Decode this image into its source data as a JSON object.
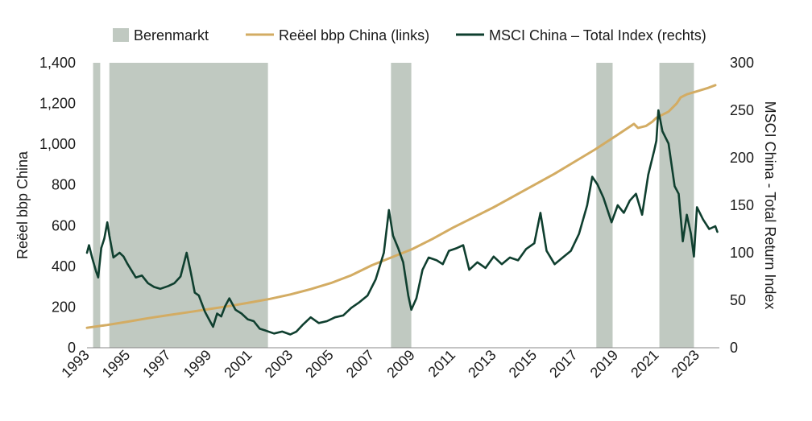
{
  "chart_data": {
    "type": "line",
    "legend": {
      "position": "top",
      "items": [
        {
          "label": "Berenmarkt",
          "kind": "band",
          "color": "#c0c9c1"
        },
        {
          "label": "Reëel bbp China (links)",
          "kind": "line",
          "color": "#d3ac63"
        },
        {
          "label": "MSCI China – Total Index (rechts)",
          "kind": "line",
          "color": "#0f3f2f"
        }
      ]
    },
    "y_left": {
      "label": "Reëel bbp China",
      "range": [
        0,
        1400
      ],
      "ticks": [
        "0",
        "200",
        "400",
        "600",
        "800",
        "1,000",
        "1,200",
        "1,400"
      ]
    },
    "y_right": {
      "label": "MSCI China - Total Return Index",
      "range": [
        0,
        300
      ],
      "ticks": [
        "0",
        "50",
        "100",
        "150",
        "200",
        "250",
        "300"
      ]
    },
    "x_axis": {
      "range": [
        1993.0,
        2024.1
      ],
      "ticks": [
        "1993",
        "1995",
        "1997",
        "1999",
        "2001",
        "2003",
        "2005",
        "2007",
        "2009",
        "2011",
        "2013",
        "2015",
        "2017",
        "2019",
        "2021",
        "2023"
      ]
    },
    "grid": false,
    "bear_markets": [
      {
        "start": 1993.3,
        "end": 1993.65
      },
      {
        "start": 1994.1,
        "end": 2001.9
      },
      {
        "start": 2007.95,
        "end": 2008.95
      },
      {
        "start": 2018.05,
        "end": 2018.85
      },
      {
        "start": 2021.15,
        "end": 2022.85
      }
    ],
    "series": [
      {
        "name": "Reëel bbp China (links)",
        "axis": "left",
        "color": "#d3ac63",
        "points": [
          [
            1993.0,
            98
          ],
          [
            1994.0,
            112
          ],
          [
            1995.0,
            128
          ],
          [
            1996.0,
            145
          ],
          [
            1997.0,
            160
          ],
          [
            1998.0,
            175
          ],
          [
            1999.0,
            190
          ],
          [
            2000.0,
            205
          ],
          [
            2001.0,
            222
          ],
          [
            2002.0,
            240
          ],
          [
            2003.0,
            262
          ],
          [
            2004.0,
            288
          ],
          [
            2005.0,
            318
          ],
          [
            2006.0,
            356
          ],
          [
            2007.0,
            405
          ],
          [
            2008.0,
            445
          ],
          [
            2009.0,
            485
          ],
          [
            2010.0,
            535
          ],
          [
            2011.0,
            590
          ],
          [
            2012.0,
            640
          ],
          [
            2013.0,
            690
          ],
          [
            2014.0,
            745
          ],
          [
            2015.0,
            800
          ],
          [
            2016.0,
            855
          ],
          [
            2017.0,
            915
          ],
          [
            2018.0,
            975
          ],
          [
            2019.0,
            1040
          ],
          [
            2019.9,
            1100
          ],
          [
            2020.1,
            1080
          ],
          [
            2020.5,
            1090
          ],
          [
            2020.8,
            1110
          ],
          [
            2021.0,
            1130
          ],
          [
            2021.6,
            1160
          ],
          [
            2022.0,
            1200
          ],
          [
            2022.2,
            1230
          ],
          [
            2022.5,
            1245
          ],
          [
            2023.0,
            1260
          ],
          [
            2023.5,
            1275
          ],
          [
            2023.9,
            1290
          ]
        ]
      },
      {
        "name": "MSCI China – Total Index (rechts)",
        "axis": "right",
        "color": "#0f3f2f",
        "points": [
          [
            1993.0,
            100
          ],
          [
            1993.1,
            108
          ],
          [
            1993.25,
            95
          ],
          [
            1993.45,
            80
          ],
          [
            1993.55,
            74
          ],
          [
            1993.7,
            105
          ],
          [
            1993.85,
            115
          ],
          [
            1994.0,
            132
          ],
          [
            1994.1,
            118
          ],
          [
            1994.3,
            95
          ],
          [
            1994.6,
            100
          ],
          [
            1994.8,
            96
          ],
          [
            1995.0,
            88
          ],
          [
            1995.4,
            74
          ],
          [
            1995.7,
            76
          ],
          [
            1996.0,
            68
          ],
          [
            1996.3,
            64
          ],
          [
            1996.6,
            62
          ],
          [
            1997.0,
            65
          ],
          [
            1997.3,
            68
          ],
          [
            1997.6,
            75
          ],
          [
            1997.9,
            100
          ],
          [
            1998.1,
            80
          ],
          [
            1998.3,
            58
          ],
          [
            1998.5,
            55
          ],
          [
            1998.8,
            38
          ],
          [
            1999.0,
            30
          ],
          [
            1999.2,
            22
          ],
          [
            1999.4,
            36
          ],
          [
            1999.6,
            33
          ],
          [
            1999.8,
            44
          ],
          [
            2000.0,
            52
          ],
          [
            2000.3,
            40
          ],
          [
            2000.6,
            36
          ],
          [
            2000.9,
            30
          ],
          [
            2001.2,
            28
          ],
          [
            2001.5,
            20
          ],
          [
            2001.8,
            18
          ],
          [
            2002.2,
            15
          ],
          [
            2002.6,
            17
          ],
          [
            2003.0,
            14
          ],
          [
            2003.3,
            17
          ],
          [
            2003.6,
            24
          ],
          [
            2004.0,
            32
          ],
          [
            2004.4,
            26
          ],
          [
            2004.8,
            28
          ],
          [
            2005.2,
            32
          ],
          [
            2005.6,
            34
          ],
          [
            2006.0,
            42
          ],
          [
            2006.4,
            48
          ],
          [
            2006.8,
            55
          ],
          [
            2007.2,
            72
          ],
          [
            2007.6,
            100
          ],
          [
            2007.85,
            145
          ],
          [
            2008.05,
            118
          ],
          [
            2008.3,
            105
          ],
          [
            2008.55,
            90
          ],
          [
            2008.8,
            55
          ],
          [
            2008.95,
            40
          ],
          [
            2009.2,
            52
          ],
          [
            2009.5,
            82
          ],
          [
            2009.8,
            95
          ],
          [
            2010.2,
            92
          ],
          [
            2010.5,
            88
          ],
          [
            2010.8,
            102
          ],
          [
            2011.2,
            105
          ],
          [
            2011.5,
            108
          ],
          [
            2011.8,
            82
          ],
          [
            2012.2,
            90
          ],
          [
            2012.6,
            84
          ],
          [
            2013.0,
            96
          ],
          [
            2013.4,
            88
          ],
          [
            2013.8,
            95
          ],
          [
            2014.2,
            92
          ],
          [
            2014.6,
            104
          ],
          [
            2015.0,
            110
          ],
          [
            2015.3,
            142
          ],
          [
            2015.6,
            102
          ],
          [
            2016.0,
            88
          ],
          [
            2016.4,
            95
          ],
          [
            2016.8,
            102
          ],
          [
            2017.2,
            120
          ],
          [
            2017.6,
            150
          ],
          [
            2017.85,
            180
          ],
          [
            2018.1,
            172
          ],
          [
            2018.4,
            158
          ],
          [
            2018.8,
            132
          ],
          [
            2019.1,
            150
          ],
          [
            2019.4,
            142
          ],
          [
            2019.7,
            155
          ],
          [
            2020.0,
            162
          ],
          [
            2020.3,
            140
          ],
          [
            2020.6,
            182
          ],
          [
            2020.9,
            208
          ],
          [
            2021.0,
            218
          ],
          [
            2021.1,
            250
          ],
          [
            2021.3,
            228
          ],
          [
            2021.6,
            215
          ],
          [
            2021.9,
            170
          ],
          [
            2022.1,
            162
          ],
          [
            2022.3,
            112
          ],
          [
            2022.5,
            140
          ],
          [
            2022.7,
            120
          ],
          [
            2022.85,
            96
          ],
          [
            2023.0,
            148
          ],
          [
            2023.3,
            135
          ],
          [
            2023.6,
            125
          ],
          [
            2023.9,
            128
          ],
          [
            2024.0,
            122
          ]
        ]
      }
    ]
  }
}
